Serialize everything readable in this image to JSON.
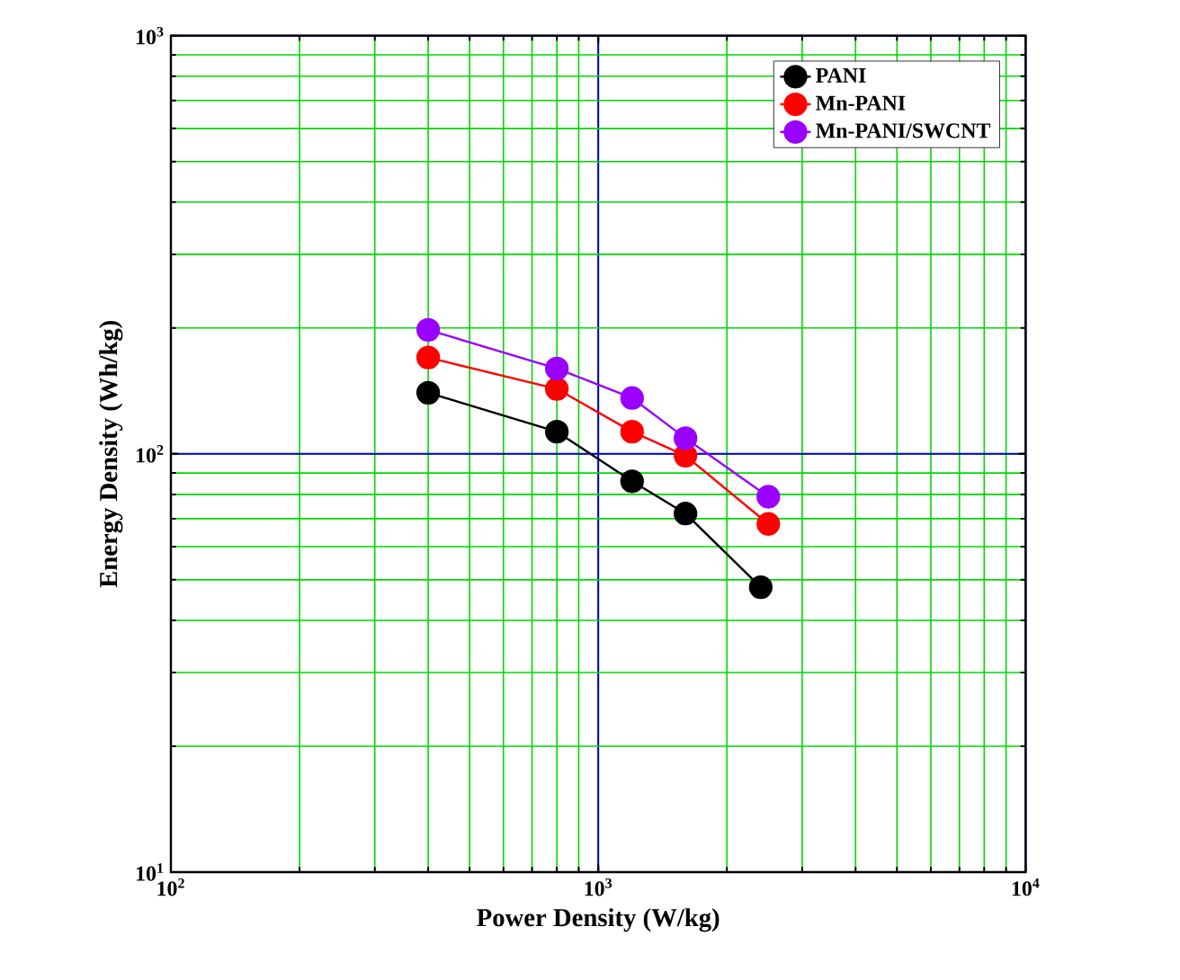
{
  "chart_data": {
    "type": "line",
    "xlabel": "Power Density (W/kg)",
    "ylabel": "Energy Density (Wh/kg)",
    "log": "xy",
    "grid": true,
    "legend": "top right",
    "marker": "circle",
    "line_style": "solid",
    "xlim": [
      100,
      10000
    ],
    "ylim": [
      10,
      1000
    ],
    "xticks": [
      {
        "value": 100,
        "label": "10$^{2}$"
      },
      {
        "value": 1000,
        "label": "10$^{3}$"
      },
      {
        "value": 10000,
        "label": "10$^{4}$"
      }
    ],
    "yticks": [
      {
        "value": 10,
        "label": "10$^{1}$"
      },
      {
        "value": 100,
        "label": "10$^{2}$"
      },
      {
        "value": 1000,
        "label": "10$^{3}$"
      }
    ],
    "series": [
      {
        "name": "PANI",
        "color": "#000000",
        "x": [
          400,
          800,
          1200,
          1600,
          2400
        ],
        "values": [
          140,
          113,
          86,
          72,
          48
        ]
      },
      {
        "name": "Mn-PANI",
        "color": "#ff0000",
        "x": [
          400,
          800,
          1200,
          1600,
          2500
        ],
        "values": [
          170,
          143,
          113,
          99,
          68
        ]
      },
      {
        "name": "Mn-PANI/SWCNT",
        "color": "#9900ff",
        "x": [
          400,
          800,
          1200,
          1600,
          2500
        ],
        "values": [
          198,
          160,
          136,
          109,
          79
        ]
      }
    ]
  }
}
